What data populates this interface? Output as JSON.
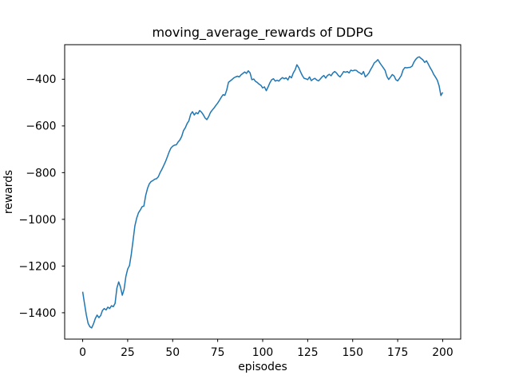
{
  "figure": {
    "title": "moving_average_rewards of DDPG",
    "xlabel": "episodes",
    "ylabel": "rewards"
  },
  "chart_data": {
    "type": "line",
    "title": "moving_average_rewards of DDPG",
    "xlabel": "episodes",
    "ylabel": "rewards",
    "grid": false,
    "legend": null,
    "xlim": [
      -10,
      210
    ],
    "ylim": [
      -1513,
      -252
    ],
    "xticks": {
      "values": [
        0,
        25,
        50,
        75,
        100,
        125,
        150,
        175,
        200
      ],
      "labels": [
        "0",
        "25",
        "50",
        "75",
        "100",
        "125",
        "150",
        "175",
        "200"
      ]
    },
    "yticks": {
      "values": [
        -1400,
        -1200,
        -1000,
        -800,
        -600,
        -400
      ],
      "labels": [
        "−1400",
        "−1200",
        "−1000",
        "−800",
        "−600",
        "−400"
      ]
    },
    "series": [
      {
        "name": "moving_average_rewards",
        "color": "#1f77b4",
        "line_width": 1.5,
        "x": [
          0,
          1,
          2,
          3,
          4,
          5,
          6,
          7,
          8,
          9,
          10,
          11,
          12,
          13,
          14,
          15,
          16,
          17,
          18,
          19,
          20,
          21,
          22,
          23,
          24,
          25,
          26,
          27,
          28,
          29,
          30,
          31,
          32,
          33,
          34,
          35,
          36,
          37,
          38,
          39,
          40,
          41,
          42,
          43,
          44,
          45,
          46,
          47,
          48,
          49,
          50,
          51,
          52,
          53,
          54,
          55,
          56,
          57,
          58,
          59,
          60,
          61,
          62,
          63,
          64,
          65,
          66,
          67,
          68,
          69,
          70,
          71,
          72,
          73,
          74,
          75,
          76,
          77,
          78,
          79,
          80,
          81,
          82,
          83,
          84,
          85,
          86,
          87,
          88,
          89,
          90,
          91,
          92,
          93,
          94,
          95,
          96,
          97,
          98,
          99,
          100,
          101,
          102,
          103,
          104,
          105,
          106,
          107,
          108,
          109,
          110,
          111,
          112,
          113,
          114,
          115,
          116,
          117,
          118,
          119,
          120,
          121,
          122,
          123,
          124,
          125,
          126,
          127,
          128,
          129,
          130,
          131,
          132,
          133,
          134,
          135,
          136,
          137,
          138,
          139,
          140,
          141,
          142,
          143,
          144,
          145,
          146,
          147,
          148,
          149,
          150,
          151,
          152,
          153,
          154,
          155,
          156,
          157,
          158,
          159,
          160,
          161,
          162,
          163,
          164,
          165,
          166,
          167,
          168,
          169,
          170,
          171,
          172,
          173,
          174,
          175,
          176,
          177,
          178,
          179,
          180,
          181,
          182,
          183,
          184,
          185,
          186,
          187,
          188,
          189,
          190,
          191,
          192,
          193,
          194,
          195,
          196,
          197,
          198,
          199,
          200
        ],
        "y": [
          -1310,
          -1360,
          -1408,
          -1445,
          -1460,
          -1465,
          -1448,
          -1425,
          -1410,
          -1421,
          -1412,
          -1390,
          -1382,
          -1388,
          -1376,
          -1382,
          -1370,
          -1374,
          -1360,
          -1295,
          -1268,
          -1290,
          -1325,
          -1300,
          -1245,
          -1213,
          -1198,
          -1150,
          -1090,
          -1028,
          -995,
          -972,
          -960,
          -946,
          -943,
          -898,
          -868,
          -848,
          -838,
          -834,
          -828,
          -826,
          -818,
          -800,
          -786,
          -770,
          -753,
          -733,
          -712,
          -695,
          -687,
          -682,
          -681,
          -669,
          -660,
          -645,
          -620,
          -608,
          -590,
          -578,
          -550,
          -539,
          -553,
          -543,
          -548,
          -534,
          -541,
          -552,
          -566,
          -573,
          -560,
          -542,
          -532,
          -523,
          -512,
          -502,
          -490,
          -477,
          -466,
          -469,
          -447,
          -413,
          -407,
          -401,
          -394,
          -390,
          -387,
          -390,
          -381,
          -375,
          -369,
          -375,
          -364,
          -373,
          -402,
          -399,
          -409,
          -414,
          -421,
          -426,
          -437,
          -433,
          -449,
          -433,
          -415,
          -402,
          -398,
          -408,
          -404,
          -408,
          -399,
          -393,
          -398,
          -394,
          -403,
          -387,
          -394,
          -373,
          -360,
          -338,
          -350,
          -368,
          -384,
          -396,
          -398,
          -402,
          -390,
          -406,
          -400,
          -396,
          -403,
          -407,
          -399,
          -390,
          -384,
          -395,
          -384,
          -379,
          -385,
          -373,
          -367,
          -373,
          -384,
          -390,
          -379,
          -367,
          -370,
          -367,
          -373,
          -361,
          -364,
          -361,
          -362,
          -369,
          -373,
          -379,
          -367,
          -390,
          -383,
          -373,
          -358,
          -345,
          -330,
          -324,
          -316,
          -329,
          -340,
          -351,
          -362,
          -388,
          -401,
          -391,
          -380,
          -386,
          -402,
          -407,
          -396,
          -384,
          -360,
          -350,
          -351,
          -350,
          -349,
          -344,
          -327,
          -315,
          -307,
          -304,
          -311,
          -317,
          -328,
          -321,
          -335,
          -350,
          -363,
          -379,
          -391,
          -404,
          -428,
          -470,
          -456
        ]
      }
    ]
  }
}
